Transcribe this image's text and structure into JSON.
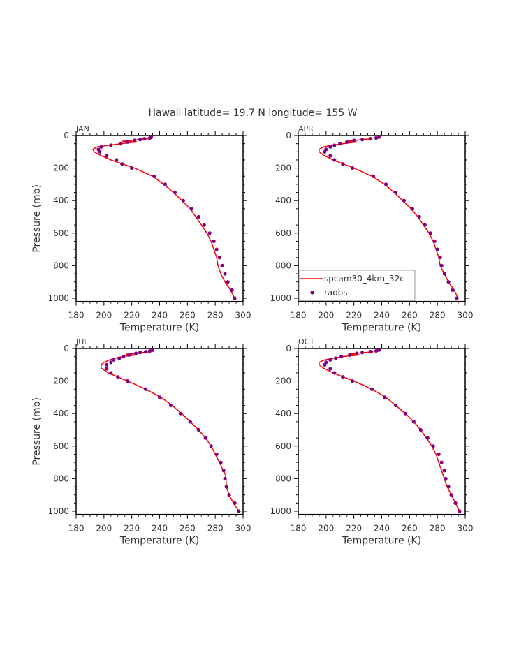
{
  "chart_data": {
    "type": "line",
    "title": "Hawaii  latitude= 19.7 N longitude= 155 W",
    "xlabel": "Temperature (K)",
    "ylabel": "Pressure (mb)",
    "xlim": [
      180,
      300
    ],
    "ylim": [
      1020,
      0
    ],
    "xticks": [
      180,
      200,
      220,
      240,
      260,
      280,
      300
    ],
    "yticks": [
      0,
      200,
      400,
      600,
      800,
      1000
    ],
    "legend": {
      "placement": "bottom-left of APR panel",
      "entries": [
        "spcam30_4km_32c",
        "raobs"
      ]
    },
    "colors": {
      "model": "#ff0000",
      "obs": "#800080"
    },
    "panels": [
      {
        "name": "JAN",
        "model": {
          "p": [
            1000,
            950,
            900,
            850,
            800,
            750,
            700,
            650,
            600,
            550,
            500,
            450,
            400,
            350,
            300,
            250,
            200,
            150,
            120,
            100,
            85,
            70,
            60,
            50,
            45,
            40,
            35,
            30,
            25,
            20
          ],
          "t": [
            294,
            291,
            287,
            284,
            282,
            281,
            279,
            277,
            274,
            270,
            266,
            262,
            256,
            250,
            243,
            235,
            222,
            205,
            197,
            193,
            192,
            195,
            203,
            212,
            218,
            224,
            213,
            220,
            225,
            232
          ]
        },
        "obs": {
          "p": [
            1000,
            950,
            900,
            850,
            800,
            750,
            700,
            650,
            600,
            550,
            500,
            450,
            400,
            350,
            300,
            250,
            200,
            175,
            150,
            125,
            100,
            85,
            70,
            60,
            50,
            40,
            30,
            25,
            20,
            15,
            10
          ],
          "t": [
            294,
            292,
            289,
            287,
            285,
            283,
            281,
            279,
            276,
            272,
            268,
            263,
            257,
            251,
            244,
            236,
            220,
            213,
            209,
            202,
            197,
            196,
            198,
            205,
            212,
            217,
            222,
            226,
            229,
            233,
            234
          ]
        }
      },
      {
        "name": "APR",
        "model": {
          "p": [
            1000,
            950,
            900,
            850,
            800,
            750,
            700,
            650,
            600,
            550,
            500,
            450,
            400,
            350,
            300,
            250,
            200,
            150,
            120,
            100,
            85,
            70,
            60,
            50,
            45,
            40,
            35,
            30,
            25,
            20
          ],
          "t": [
            295,
            292,
            288,
            285,
            282,
            281,
            279,
            277,
            274,
            270,
            266,
            261,
            255,
            249,
            242,
            233,
            220,
            205,
            198,
            195,
            195,
            198,
            204,
            212,
            217,
            222,
            214,
            221,
            226,
            232
          ]
        },
        "obs": {
          "p": [
            1000,
            950,
            900,
            850,
            800,
            750,
            700,
            650,
            600,
            550,
            500,
            450,
            400,
            350,
            300,
            250,
            200,
            175,
            150,
            125,
            100,
            85,
            70,
            60,
            50,
            40,
            30,
            25,
            20,
            15,
            10
          ],
          "t": [
            294,
            291,
            288,
            285,
            283,
            282,
            280,
            278,
            275,
            271,
            267,
            262,
            256,
            250,
            243,
            234,
            219,
            212,
            206,
            203,
            199,
            200,
            203,
            206,
            210,
            215,
            220,
            226,
            232,
            236,
            238
          ]
        }
      },
      {
        "name": "JUL",
        "model": {
          "p": [
            1000,
            950,
            900,
            850,
            780,
            700,
            650,
            600,
            550,
            500,
            450,
            400,
            350,
            300,
            250,
            200,
            150,
            120,
            100,
            85,
            70,
            60,
            50,
            45,
            40,
            35,
            30,
            25,
            20
          ],
          "t": [
            297,
            293,
            290,
            288,
            287.5,
            283,
            280,
            277,
            273,
            268,
            262,
            256,
            249,
            241,
            230,
            217,
            203,
            198,
            198,
            200,
            204,
            208,
            213,
            218,
            223,
            216,
            222,
            228,
            234
          ]
        },
        "obs": {
          "p": [
            1000,
            950,
            900,
            850,
            800,
            750,
            700,
            650,
            600,
            550,
            500,
            450,
            400,
            350,
            300,
            250,
            200,
            175,
            150,
            125,
            100,
            85,
            70,
            60,
            50,
            40,
            30,
            25,
            20,
            15,
            10
          ],
          "t": [
            297,
            294,
            290,
            288,
            287,
            286,
            284,
            281,
            277,
            273,
            268,
            262,
            255,
            248,
            240,
            230,
            217,
            210,
            205,
            202,
            202,
            205,
            207,
            211,
            214,
            218,
            223,
            226,
            230,
            233,
            235
          ]
        }
      },
      {
        "name": "OCT",
        "model": {
          "p": [
            1000,
            950,
            900,
            850,
            800,
            750,
            700,
            650,
            600,
            550,
            500,
            450,
            400,
            350,
            300,
            250,
            200,
            150,
            120,
            100,
            85,
            70,
            60,
            50,
            45,
            40,
            35,
            30,
            25,
            20
          ],
          "t": [
            296,
            293,
            290,
            287,
            285,
            283,
            281,
            279,
            276,
            272,
            268,
            263,
            257,
            250,
            243,
            233,
            220,
            205,
            198,
            195,
            195,
            199,
            205,
            212,
            218,
            224,
            216,
            222,
            228,
            234
          ]
        },
        "obs": {
          "p": [
            1000,
            950,
            900,
            850,
            800,
            750,
            700,
            650,
            600,
            550,
            500,
            450,
            400,
            350,
            300,
            250,
            200,
            175,
            150,
            125,
            100,
            85,
            70,
            60,
            50,
            40,
            30,
            25,
            20,
            15,
            10
          ],
          "t": [
            296,
            293,
            290,
            288,
            286,
            285,
            283,
            281,
            277,
            273,
            268,
            263,
            257,
            250,
            242,
            233,
            219,
            212,
            206,
            203,
            199,
            200,
            203,
            207,
            211,
            217,
            222,
            226,
            232,
            236,
            238
          ]
        }
      }
    ]
  }
}
